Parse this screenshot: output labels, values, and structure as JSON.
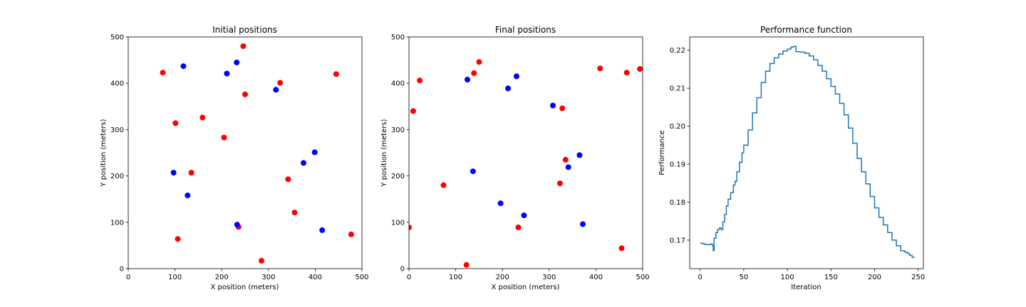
{
  "chart_data": [
    {
      "type": "scatter",
      "title": "Initial positions",
      "xlabel": "X position (meters)",
      "ylabel": "Y position (meters)",
      "xlim": [
        0,
        500
      ],
      "ylim": [
        0,
        500
      ],
      "xticks": [
        0,
        100,
        200,
        300,
        400,
        500
      ],
      "yticks": [
        0,
        100,
        200,
        300,
        400,
        500
      ],
      "grid": false,
      "series": [
        {
          "color": "#ff0000",
          "points": [
            [
              74,
              423
            ],
            [
              246,
              480
            ],
            [
              445,
              420
            ],
            [
              325,
              401
            ],
            [
              250,
              376
            ],
            [
              101,
              314
            ],
            [
              159,
              326
            ],
            [
              205,
              283
            ],
            [
              135,
              207
            ],
            [
              342,
              193
            ],
            [
              356,
              121
            ],
            [
              106,
              64
            ],
            [
              236,
              90
            ],
            [
              285,
              17
            ],
            [
              477,
              74
            ]
          ]
        },
        {
          "color": "#0000ff",
          "points": [
            [
              118,
              437
            ],
            [
              232,
              445
            ],
            [
              211,
              421
            ],
            [
              316,
              386
            ],
            [
              399,
              251
            ],
            [
              375,
              228
            ],
            [
              97,
              207
            ],
            [
              127,
              158
            ],
            [
              233,
              95
            ],
            [
              415,
              83
            ]
          ]
        }
      ]
    },
    {
      "type": "scatter",
      "title": "Final positions",
      "xlabel": "X position (meters)",
      "ylabel": "Y position (meters)",
      "xlim": [
        0,
        500
      ],
      "ylim": [
        0,
        500
      ],
      "xticks": [
        0,
        100,
        200,
        300,
        400,
        500
      ],
      "yticks": [
        0,
        100,
        200,
        300,
        400,
        500
      ],
      "grid": false,
      "series": [
        {
          "color": "#ff0000",
          "points": [
            [
              150,
              446
            ],
            [
              139,
              422
            ],
            [
              23,
              406
            ],
            [
              9,
              340
            ],
            [
              409,
              432
            ],
            [
              466,
              423
            ],
            [
              494,
              431
            ],
            [
              328,
              346
            ],
            [
              335,
              235
            ],
            [
              323,
              184
            ],
            [
              74,
              180
            ],
            [
              0,
              89
            ],
            [
              234,
              89
            ],
            [
              123,
              8
            ],
            [
              455,
              44
            ]
          ]
        },
        {
          "color": "#0000ff",
          "points": [
            [
              125,
              408
            ],
            [
              230,
              415
            ],
            [
              212,
              389
            ],
            [
              308,
              352
            ],
            [
              365,
              245
            ],
            [
              341,
              219
            ],
            [
              137,
              210
            ],
            [
              196,
              141
            ],
            [
              246,
              115
            ],
            [
              372,
              96
            ]
          ]
        }
      ]
    },
    {
      "type": "line",
      "title": "Performance function",
      "xlabel": "Iteration",
      "ylabel": "Performance",
      "xlim": [
        -12,
        256
      ],
      "ylim": [
        0.1625,
        0.2235
      ],
      "xticks": [
        0,
        50,
        100,
        150,
        200,
        250
      ],
      "yticks": [
        0.17,
        0.18,
        0.19,
        0.2,
        0.21,
        0.22
      ],
      "ytick_labels": [
        "0.17",
        "0.18",
        "0.19",
        "0.20",
        "0.21",
        "0.22"
      ],
      "grid": false,
      "series": [
        {
          "color": "#1f77b4",
          "points": [
            [
              0,
              0.1692
            ],
            [
              3,
              0.169
            ],
            [
              6,
              0.1688
            ],
            [
              9,
              0.1688
            ],
            [
              12,
              0.169
            ],
            [
              14,
              0.1686
            ],
            [
              15,
              0.1672
            ],
            [
              16,
              0.1705
            ],
            [
              18,
              0.172
            ],
            [
              20,
              0.1728
            ],
            [
              22,
              0.1732
            ],
            [
              24,
              0.1728
            ],
            [
              26,
              0.1748
            ],
            [
              28,
              0.1768
            ],
            [
              30,
              0.179
            ],
            [
              32,
              0.1808
            ],
            [
              35,
              0.1825
            ],
            [
              38,
              0.1845
            ],
            [
              40,
              0.1855
            ],
            [
              42,
              0.188
            ],
            [
              45,
              0.1905
            ],
            [
              48,
              0.193
            ],
            [
              50,
              0.195
            ],
            [
              55,
              0.199
            ],
            [
              60,
              0.2035
            ],
            [
              65,
              0.2075
            ],
            [
              70,
              0.2115
            ],
            [
              75,
              0.2145
            ],
            [
              80,
              0.2165
            ],
            [
              85,
              0.218
            ],
            [
              90,
              0.219
            ],
            [
              95,
              0.2198
            ],
            [
              100,
              0.2203
            ],
            [
              104,
              0.2208
            ],
            [
              107,
              0.221
            ],
            [
              110,
              0.2196
            ],
            [
              115,
              0.2195
            ],
            [
              120,
              0.2192
            ],
            [
              125,
              0.2185
            ],
            [
              130,
              0.2175
            ],
            [
              135,
              0.216
            ],
            [
              140,
              0.2145
            ],
            [
              145,
              0.2125
            ],
            [
              150,
              0.2105
            ],
            [
              155,
              0.2085
            ],
            [
              160,
              0.206
            ],
            [
              165,
              0.203
            ],
            [
              170,
              0.1995
            ],
            [
              175,
              0.1955
            ],
            [
              180,
              0.1915
            ],
            [
              185,
              0.188
            ],
            [
              190,
              0.1848
            ],
            [
              195,
              0.1815
            ],
            [
              200,
              0.1785
            ],
            [
              205,
              0.176
            ],
            [
              210,
              0.174
            ],
            [
              215,
              0.172
            ],
            [
              220,
              0.17
            ],
            [
              225,
              0.1685
            ],
            [
              230,
              0.1672
            ],
            [
              235,
              0.1668
            ],
            [
              238,
              0.1665
            ],
            [
              240,
              0.166
            ],
            [
              243,
              0.1655
            ],
            [
              246,
              0.1655
            ]
          ]
        }
      ]
    }
  ]
}
